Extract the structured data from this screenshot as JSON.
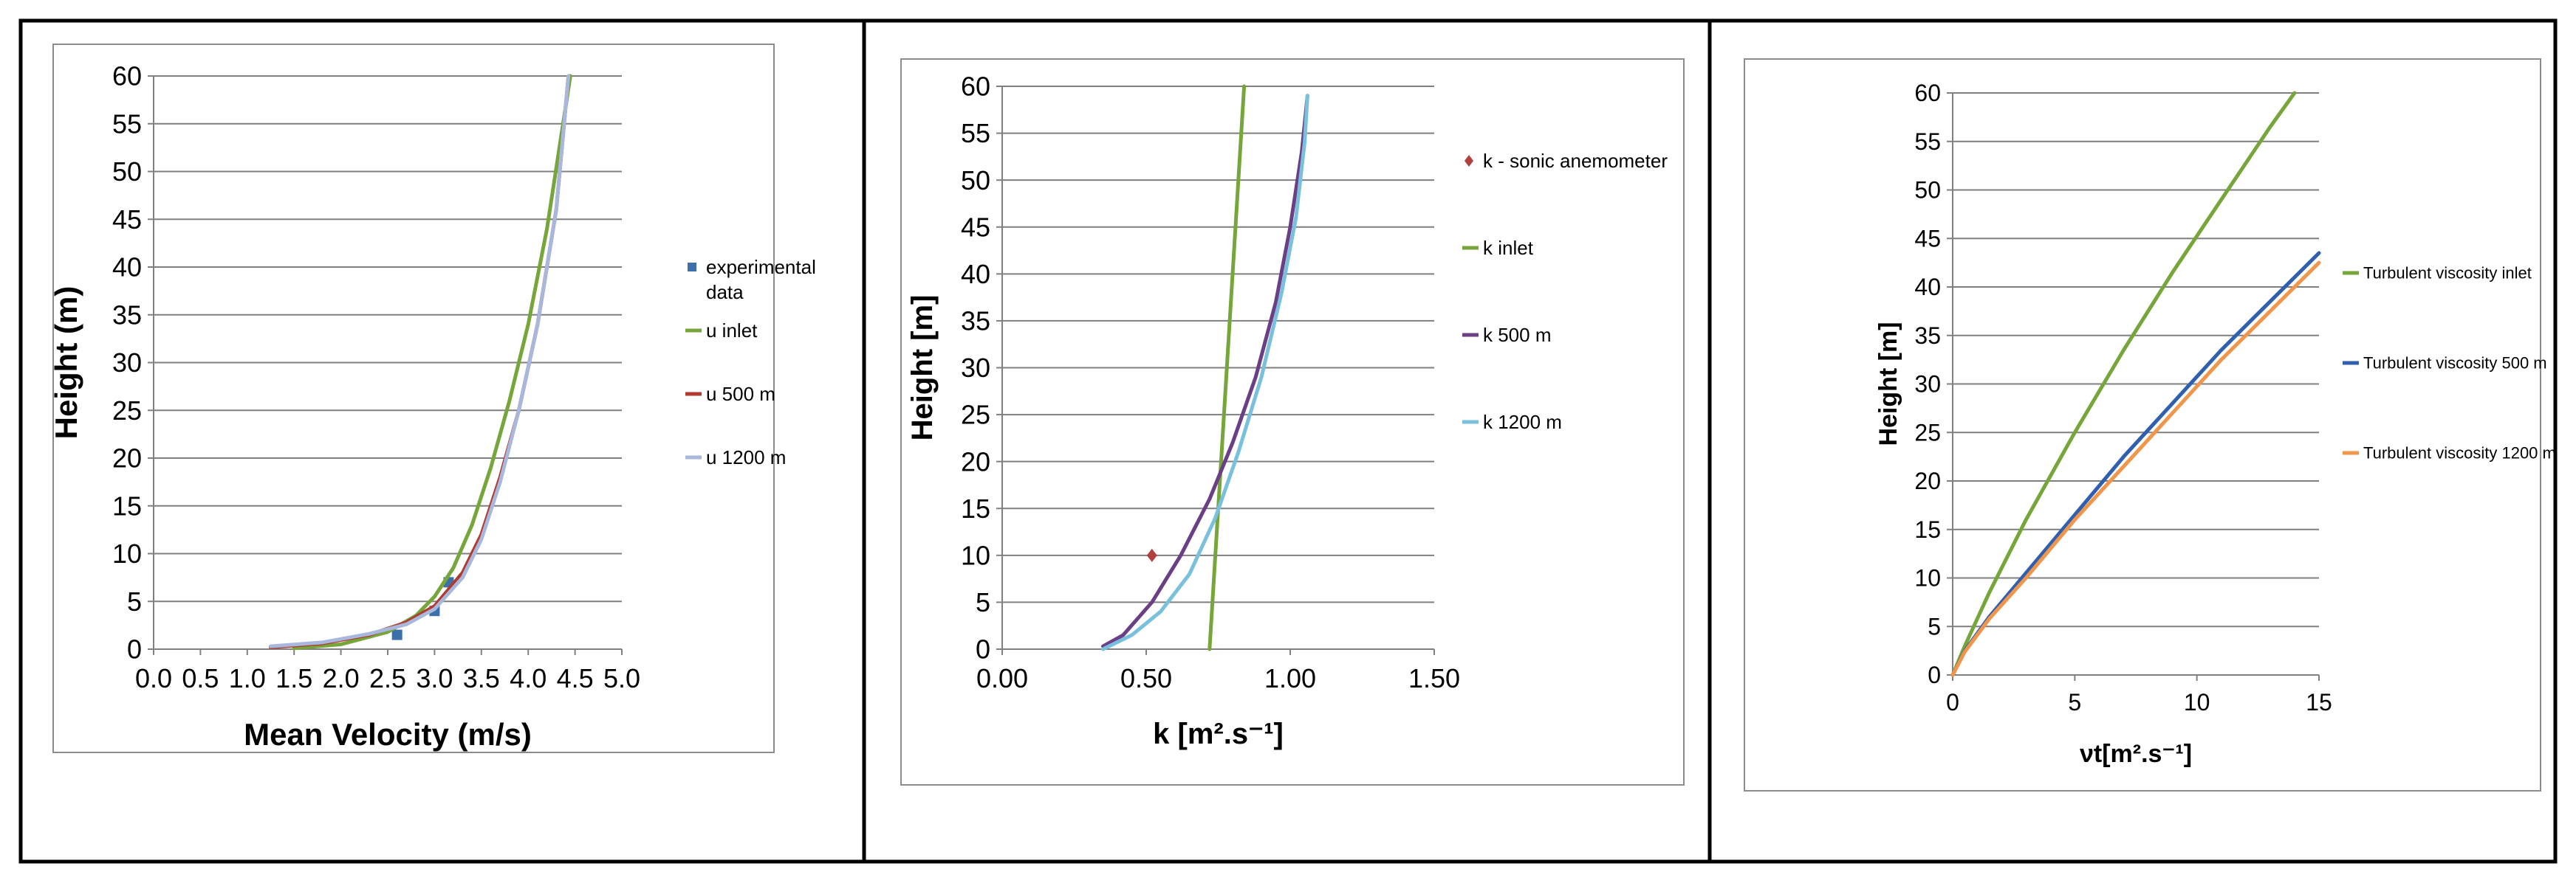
{
  "colors": {
    "frame": "#000000",
    "chart_border": "#8c8c8c",
    "grid": "#7f7f7f",
    "axis": "#808080",
    "tick_text": "#000000",
    "green": "#76a63a",
    "dark_red": "#b03a30",
    "light_blue": "#a8b8dd",
    "square_marker": "#3d6fad",
    "diamond_marker": "#b0413e",
    "purple": "#6b3f86",
    "sky_blue": "#79c0dc",
    "navy": "#2f5fae",
    "orange": "#f0954a"
  },
  "chart_data": [
    {
      "type": "line",
      "xlabel": "Mean Velocity (m/s)",
      "ylabel": "Height (m)",
      "xlim": [
        0,
        5
      ],
      "ylim": [
        0,
        60
      ],
      "xticks": [
        "0.0",
        "0.5",
        "1.0",
        "1.5",
        "2.0",
        "2.5",
        "3.0",
        "3.5",
        "4.0",
        "4.5",
        "5.0"
      ],
      "yticks": [
        "0",
        "5",
        "10",
        "15",
        "20",
        "25",
        "30",
        "35",
        "40",
        "45",
        "50",
        "55",
        "60"
      ],
      "grid": true,
      "legend_position": "right",
      "series": [
        {
          "name": "experimental data",
          "kind": "marker",
          "marker": "square",
          "color": "#3d6fad",
          "x": [
            2.6,
            3.0,
            3.15
          ],
          "y": [
            1.5,
            4.0,
            7.0
          ]
        },
        {
          "name": "u inlet",
          "kind": "line",
          "color": "#76a63a",
          "x": [
            1.5,
            2.0,
            2.5,
            2.8,
            3.0,
            3.2,
            3.4,
            3.6,
            3.8,
            4.0,
            4.2,
            4.45
          ],
          "y": [
            0.1,
            0.5,
            1.8,
            3.5,
            5.5,
            8.5,
            13.0,
            19.0,
            26.0,
            34.0,
            44.0,
            60.0
          ]
        },
        {
          "name": "u 500 m",
          "kind": "line",
          "color": "#b03a30",
          "x": [
            1.25,
            1.8,
            2.3,
            2.7,
            3.0,
            3.3,
            3.5,
            3.7,
            3.9,
            4.1,
            4.3,
            4.43
          ],
          "y": [
            0.2,
            0.6,
            1.5,
            2.8,
            4.5,
            8.0,
            12.0,
            18.0,
            25.0,
            34.0,
            46.0,
            60.0
          ]
        },
        {
          "name": "u 1200 m",
          "kind": "line",
          "color": "#a8b8dd",
          "x": [
            1.25,
            1.8,
            2.3,
            2.7,
            3.0,
            3.3,
            3.5,
            3.7,
            3.9,
            4.1,
            4.3,
            4.43
          ],
          "y": [
            0.3,
            0.7,
            1.6,
            2.6,
            4.2,
            7.5,
            11.5,
            17.5,
            25.0,
            34.0,
            46.0,
            60.0
          ]
        }
      ],
      "legend": [
        {
          "label_lines": [
            "experimental",
            "data"
          ],
          "kind": "marker"
        },
        {
          "label_lines": [
            "u inlet"
          ],
          "kind": "line"
        },
        {
          "label_lines": [
            "u 500 m"
          ],
          "kind": "line"
        },
        {
          "label_lines": [
            "u 1200 m"
          ],
          "kind": "line"
        }
      ]
    },
    {
      "type": "line",
      "xlabel": "k [m².s⁻¹]",
      "ylabel": "Height [m]",
      "xlim": [
        0,
        1.5
      ],
      "ylim": [
        0,
        60
      ],
      "xticks": [
        "0.00",
        "0.50",
        "1.00",
        "1.50"
      ],
      "yticks": [
        "0",
        "5",
        "10",
        "15",
        "20",
        "25",
        "30",
        "35",
        "40",
        "45",
        "50",
        "55",
        "60"
      ],
      "grid": true,
      "legend_position": "right",
      "series": [
        {
          "name": "k - sonic anemometer",
          "kind": "marker",
          "marker": "diamond",
          "color": "#b0413e",
          "x": [
            0.52
          ],
          "y": [
            10.0
          ]
        },
        {
          "name": "k inlet",
          "kind": "line",
          "color": "#76a63a",
          "x": [
            0.72,
            0.74,
            0.76,
            0.78,
            0.8,
            0.82,
            0.84
          ],
          "y": [
            0.0,
            10.0,
            20.0,
            30.0,
            40.0,
            50.0,
            60.0
          ]
        },
        {
          "name": "k  500 m",
          "kind": "line",
          "color": "#6b3f86",
          "x": [
            0.35,
            0.42,
            0.52,
            0.62,
            0.72,
            0.8,
            0.88,
            0.95,
            1.0,
            1.04,
            1.06
          ],
          "y": [
            0.3,
            1.5,
            5.0,
            10.0,
            16.0,
            22.0,
            29.0,
            37.0,
            45.0,
            53.0,
            59.0
          ]
        },
        {
          "name": "k 1200 m",
          "kind": "line",
          "color": "#79c0dc",
          "x": [
            0.35,
            0.45,
            0.55,
            0.65,
            0.74,
            0.82,
            0.9,
            0.97,
            1.02,
            1.05,
            1.06
          ],
          "y": [
            0.0,
            1.5,
            4.0,
            8.0,
            14.0,
            21.0,
            29.0,
            38.0,
            46.0,
            54.0,
            59.0
          ]
        }
      ],
      "legend": [
        {
          "label_lines": [
            "k - sonic anemometer"
          ],
          "kind": "marker"
        },
        {
          "label_lines": [
            "k inlet"
          ],
          "kind": "line"
        },
        {
          "label_lines": [
            "k  500 m"
          ],
          "kind": "line"
        },
        {
          "label_lines": [
            "k 1200 m"
          ],
          "kind": "line"
        }
      ]
    },
    {
      "type": "line",
      "xlabel": "νt[m².s⁻¹]",
      "ylabel": "Height [m]",
      "xlim": [
        0,
        15
      ],
      "ylim": [
        0,
        60
      ],
      "xticks": [
        "0",
        "5",
        "10",
        "15"
      ],
      "yticks": [
        "0",
        "5",
        "10",
        "15",
        "20",
        "25",
        "30",
        "35",
        "40",
        "45",
        "50",
        "55",
        "60"
      ],
      "grid": true,
      "legend_position": "right",
      "series": [
        {
          "name": "Turbulent viscosity inlet",
          "kind": "line",
          "color": "#76a63a",
          "x": [
            0.0,
            0.5,
            1.5,
            3.0,
            5.0,
            7.0,
            9.0,
            11.0,
            13.0,
            14.0
          ],
          "y": [
            0.0,
            3.0,
            8.5,
            16.0,
            25.0,
            33.5,
            41.5,
            49.0,
            56.5,
            60.0
          ]
        },
        {
          "name": "Turbulent viscosity 500 m",
          "kind": "line",
          "color": "#2f5fae",
          "x": [
            0.0,
            0.5,
            1.5,
            3.0,
            5.0,
            7.0,
            9.0,
            11.0,
            13.0,
            15.0
          ],
          "y": [
            0.0,
            2.5,
            6.0,
            10.5,
            16.5,
            22.5,
            28.0,
            33.5,
            38.5,
            43.5
          ]
        },
        {
          "name": "Turbulent viscosity 1200 m",
          "kind": "line",
          "color": "#f0954a",
          "x": [
            0.0,
            0.5,
            1.5,
            3.0,
            5.0,
            7.0,
            9.0,
            11.0,
            13.0,
            15.0
          ],
          "y": [
            0.0,
            2.4,
            5.8,
            10.0,
            16.0,
            21.5,
            27.0,
            32.5,
            37.5,
            42.5
          ]
        }
      ],
      "legend": [
        {
          "label_lines": [
            "Turbulent viscosity inlet"
          ],
          "kind": "line"
        },
        {
          "label_lines": [
            "Turbulent viscosity 500 m"
          ],
          "kind": "line"
        },
        {
          "label_lines": [
            "Turbulent viscosity 1200 m"
          ],
          "kind": "line"
        }
      ]
    }
  ]
}
